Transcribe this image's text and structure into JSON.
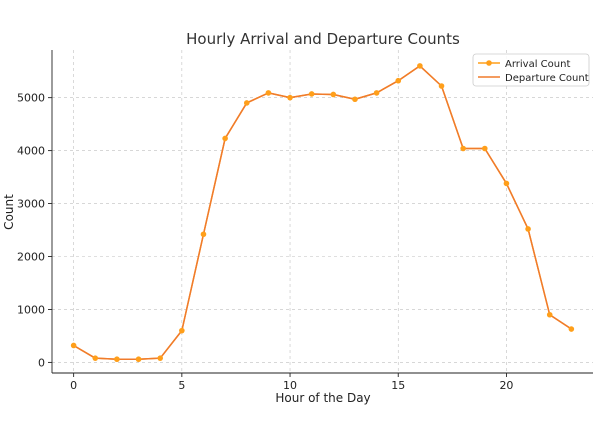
{
  "chart_data": {
    "type": "line",
    "title": "Hourly Arrival and Departure Counts",
    "xlabel": "Hour of the Day",
    "ylabel": "Count",
    "xlim": [
      -1,
      24
    ],
    "ylim": [
      -200,
      5900
    ],
    "xticks": [
      0,
      5,
      10,
      15,
      20
    ],
    "yticks": [
      0,
      1000,
      2000,
      3000,
      4000,
      5000
    ],
    "grid": true,
    "legend_position": "top-right",
    "x": [
      0,
      1,
      2,
      3,
      4,
      5,
      6,
      7,
      8,
      9,
      10,
      11,
      12,
      13,
      14,
      15,
      16,
      17,
      18,
      19,
      20,
      21,
      22,
      23
    ],
    "series": [
      {
        "name": "Arrival Count",
        "color": "#ff9f1a",
        "marker": "circle",
        "values": [
          320,
          80,
          60,
          60,
          80,
          600,
          2420,
          4230,
          4900,
          5090,
          5000,
          5070,
          5060,
          4970,
          5090,
          5320,
          5600,
          5220,
          4040,
          4040,
          3380,
          2520,
          900,
          630
        ]
      },
      {
        "name": "Departure Count",
        "color": "#f07b2c",
        "marker": "none",
        "values": [
          320,
          80,
          60,
          60,
          80,
          600,
          2420,
          4230,
          4900,
          5090,
          5000,
          5070,
          5060,
          4970,
          5090,
          5320,
          5600,
          5220,
          4040,
          4040,
          3380,
          2520,
          900,
          630
        ]
      }
    ]
  }
}
